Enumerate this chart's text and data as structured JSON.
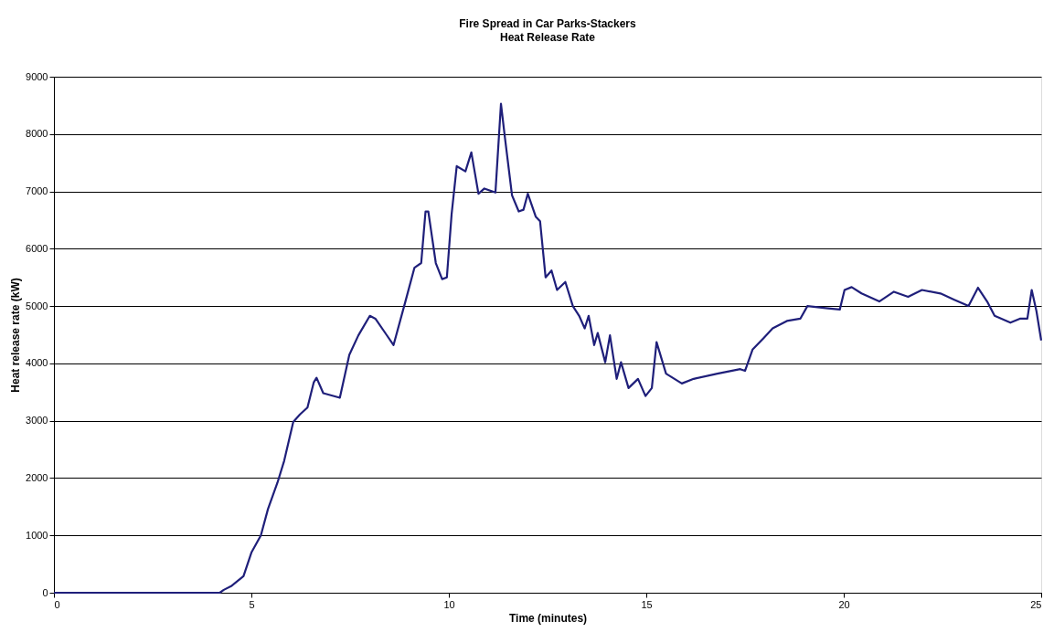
{
  "chart_data": {
    "type": "line",
    "title": "Fire Spread in Car Parks-Stackers",
    "subtitle": "Heat Release Rate",
    "xlabel": "Time (minutes)",
    "ylabel": "Heat release rate (kW)",
    "xlim": [
      0,
      25
    ],
    "xticks": [
      0,
      5,
      10,
      15,
      20,
      25
    ],
    "ylim": [
      0,
      9000
    ],
    "yticks": [
      0,
      1000,
      2000,
      3000,
      4000,
      5000,
      6000,
      7000,
      8000,
      9000
    ],
    "grid": "y",
    "series": [
      {
        "color": "#1f1f7a",
        "x": [
          0,
          1,
          2,
          3,
          4,
          4.2,
          4.3,
          4.5,
          4.8,
          5.0,
          5.24,
          5.42,
          5.66,
          5.83,
          6.06,
          6.23,
          6.42,
          6.58,
          6.65,
          6.82,
          7.24,
          7.48,
          7.71,
          8.0,
          8.14,
          8.42,
          8.6,
          8.9,
          9.13,
          9.3,
          9.41,
          9.48,
          9.67,
          9.83,
          9.95,
          10.07,
          10.2,
          10.42,
          10.57,
          10.75,
          10.9,
          11.18,
          11.32,
          11.42,
          11.6,
          11.77,
          11.89,
          12.0,
          12.2,
          12.31,
          12.45,
          12.6,
          12.74,
          12.95,
          13.14,
          13.3,
          13.44,
          13.54,
          13.68,
          13.77,
          13.96,
          14.08,
          14.25,
          14.36,
          14.55,
          14.79,
          14.98,
          15.14,
          15.26,
          15.5,
          15.9,
          16.2,
          16.8,
          17.38,
          17.5,
          17.69,
          17.97,
          18.2,
          18.56,
          18.9,
          19.08,
          19.6,
          19.9,
          20.02,
          20.2,
          20.45,
          20.9,
          21.27,
          21.63,
          21.98,
          22.45,
          22.8,
          23.16,
          23.4,
          23.63,
          23.82,
          24.22,
          24.46,
          24.65,
          24.76,
          24.88,
          25
        ],
        "values": [
          0,
          0,
          0,
          0,
          0,
          0,
          50,
          120,
          290,
          700,
          1000,
          1460,
          1920,
          2300,
          2980,
          3110,
          3230,
          3670,
          3750,
          3480,
          3400,
          4150,
          4490,
          4830,
          4780,
          4500,
          4320,
          5080,
          5670,
          5750,
          6650,
          6650,
          5750,
          5470,
          5500,
          6600,
          7440,
          7350,
          7680,
          6960,
          7050,
          6980,
          8530,
          7940,
          6930,
          6650,
          6680,
          6960,
          6560,
          6480,
          5500,
          5620,
          5280,
          5420,
          5000,
          4830,
          4610,
          4830,
          4320,
          4530,
          4020,
          4490,
          3730,
          4020,
          3570,
          3730,
          3430,
          3570,
          4370,
          3820,
          3650,
          3730,
          3820,
          3900,
          3870,
          4240,
          4440,
          4610,
          4740,
          4780,
          5000,
          4960,
          4940,
          5280,
          5330,
          5220,
          5080,
          5250,
          5160,
          5280,
          5220,
          5110,
          5000,
          5320,
          5080,
          4830,
          4710,
          4780,
          4780,
          5280,
          4910,
          4400
        ]
      }
    ]
  }
}
